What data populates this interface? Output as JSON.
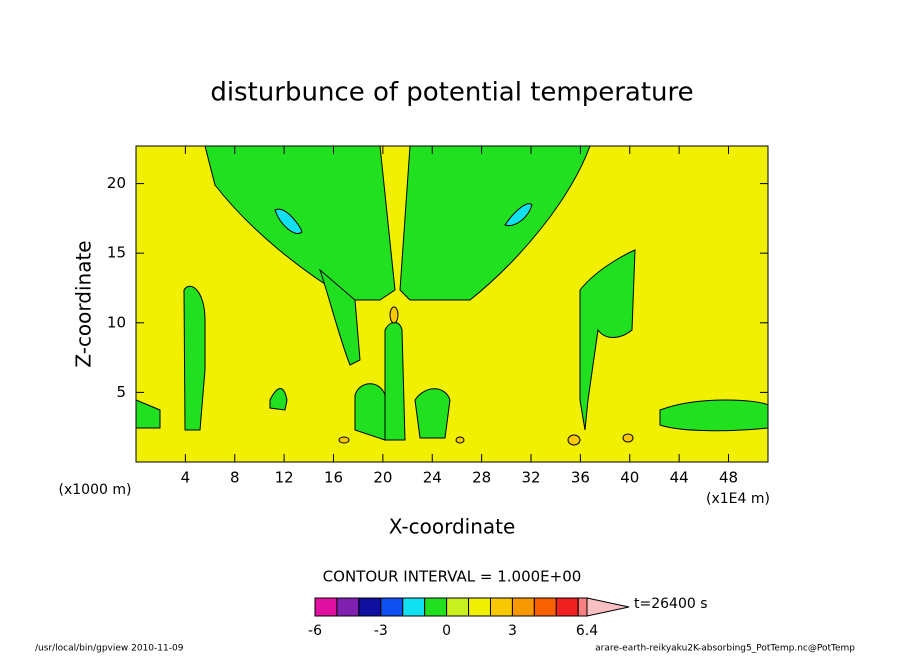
{
  "chart_data": {
    "type": "contour",
    "title": "disturbunce of potential temperature",
    "x_label": "X-coordinate",
    "y_label": "Z-coordinate",
    "x_unit_label": "(x1000 m)",
    "x_scale_label": "(x1E4 m)",
    "xlim": [
      0,
      51.2
    ],
    "xticks": [
      4,
      8,
      12,
      16,
      20,
      24,
      28,
      32,
      36,
      40,
      44,
      48
    ],
    "ylim": [
      0,
      22.7
    ],
    "yticks": [
      5,
      10,
      15,
      20
    ],
    "contour_interval_text": "CONTOUR INTERVAL = 1.000E+00",
    "time_label": "t=26400 s",
    "colorbar": {
      "clim": [
        -6,
        6.4
      ],
      "ticks": [
        -6,
        -3,
        0,
        3,
        6.4
      ],
      "levels": [
        -6,
        -5,
        -4,
        -3,
        -2,
        -1,
        0,
        1,
        2,
        3,
        4,
        5,
        6
      ],
      "colors": [
        "#e010a0",
        "#8020b0",
        "#1010a0",
        "#1050f0",
        "#10e0f0",
        "#20e020",
        "#c8f020",
        "#f0f000",
        "#f8c800",
        "#f89800",
        "#f86000",
        "#f02020",
        "#f88080"
      ],
      "over_color": "#f8c0c0"
    },
    "footer_left": "/usr/local/bin/gpview  2010-11-09",
    "footer_right": "arare-earth-reikyaku2K-absorbing5_PotTemp.nc@PotTemp"
  }
}
